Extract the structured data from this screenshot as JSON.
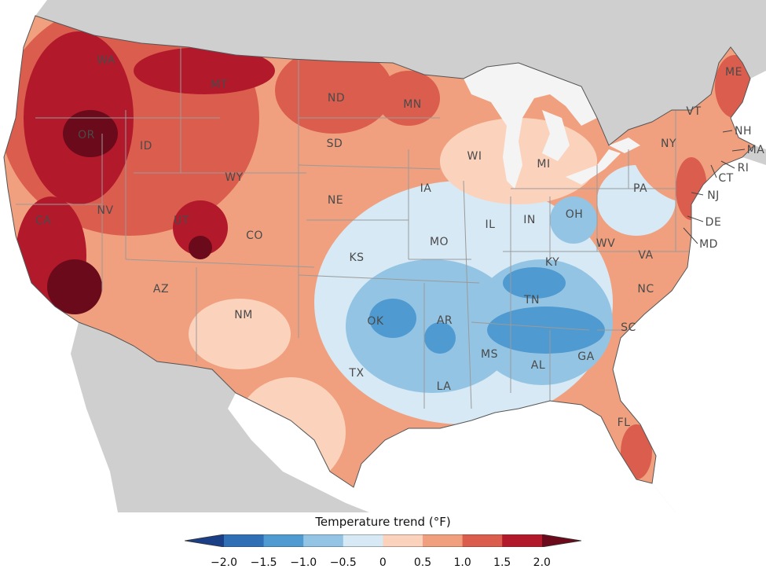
{
  "legend": {
    "title": "Temperature trend (°F)",
    "ticks": [
      "−2.0",
      "−1.5",
      "−1.0",
      "−0.5",
      "0",
      "0.5",
      "1.0",
      "1.5",
      "2.0"
    ],
    "colors": [
      "#1a3f86",
      "#2e6fb5",
      "#4f9ad0",
      "#94c4e3",
      "#d6e9f5",
      "#fbd3bd",
      "#f0a07e",
      "#db5d4d",
      "#b21a2c",
      "#6b0a1b"
    ]
  },
  "states": {
    "WA": "WA",
    "OR": "OR",
    "CA": "CA",
    "ID": "ID",
    "NV": "NV",
    "MT": "MT",
    "WY": "WY",
    "UT": "UT",
    "AZ": "AZ",
    "CO": "CO",
    "NM": "NM",
    "ND": "ND",
    "SD": "SD",
    "NE": "NE",
    "KS": "KS",
    "OK": "OK",
    "TX": "TX",
    "MN": "MN",
    "IA": "IA",
    "MO": "MO",
    "AR": "AR",
    "LA": "LA",
    "WI": "WI",
    "IL": "IL",
    "MS": "MS",
    "MI": "MI",
    "IN": "IN",
    "KY": "KY",
    "TN": "TN",
    "AL": "AL",
    "OH": "OH",
    "GA": "GA",
    "FL": "FL",
    "SC": "SC",
    "NC": "NC",
    "VA": "VA",
    "WV": "WV",
    "PA": "PA",
    "NY": "NY",
    "ME": "ME",
    "VT": "VT",
    "NH": "NH",
    "MA": "MA",
    "RI": "RI",
    "CT": "CT",
    "NJ": "NJ",
    "DE": "DE",
    "MD": "MD"
  }
}
